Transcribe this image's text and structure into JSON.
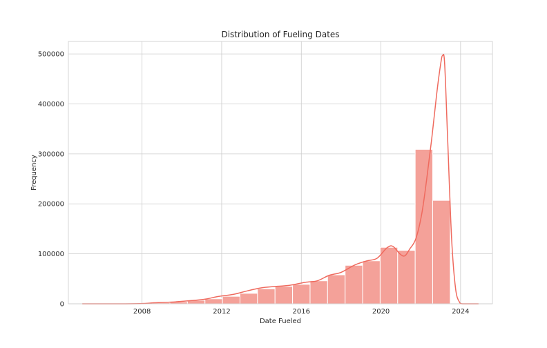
{
  "chart_data": {
    "type": "bar",
    "title": "Distribution of Fueling Dates",
    "xlabel": "Date Fueled",
    "ylabel": "Frequency",
    "xlim": [
      2004.3,
      2025.6
    ],
    "ylim": [
      0,
      525000
    ],
    "x_ticks": [
      2008,
      2012,
      2016,
      2020,
      2024
    ],
    "y_ticks": [
      0,
      100000,
      200000,
      300000,
      400000,
      500000
    ],
    "grid": true,
    "bar_color": "#f4a199",
    "line_color": "#ef6a5e",
    "bins": [
      {
        "start": 2005.0,
        "end": 2005.88,
        "value": 0
      },
      {
        "start": 2005.88,
        "end": 2006.76,
        "value": 0
      },
      {
        "start": 2006.76,
        "end": 2007.64,
        "value": 0
      },
      {
        "start": 2007.64,
        "end": 2008.52,
        "value": 500
      },
      {
        "start": 2008.52,
        "end": 2009.4,
        "value": 2000
      },
      {
        "start": 2009.4,
        "end": 2010.28,
        "value": 4000
      },
      {
        "start": 2010.28,
        "end": 2011.16,
        "value": 7000
      },
      {
        "start": 2011.16,
        "end": 2012.04,
        "value": 10000
      },
      {
        "start": 2012.04,
        "end": 2012.92,
        "value": 15000
      },
      {
        "start": 2012.92,
        "end": 2013.8,
        "value": 21000
      },
      {
        "start": 2013.8,
        "end": 2014.68,
        "value": 30000
      },
      {
        "start": 2014.68,
        "end": 2015.56,
        "value": 35000
      },
      {
        "start": 2015.56,
        "end": 2016.44,
        "value": 39000
      },
      {
        "start": 2016.44,
        "end": 2017.32,
        "value": 46000
      },
      {
        "start": 2017.32,
        "end": 2018.2,
        "value": 58000
      },
      {
        "start": 2018.2,
        "end": 2019.08,
        "value": 77000
      },
      {
        "start": 2019.08,
        "end": 2019.96,
        "value": 86000
      },
      {
        "start": 2019.96,
        "end": 2020.84,
        "value": 113000
      },
      {
        "start": 2020.84,
        "end": 2021.72,
        "value": 107000
      },
      {
        "start": 2021.72,
        "end": 2022.6,
        "value": 309000
      },
      {
        "start": 2022.6,
        "end": 2023.48,
        "value": 207000
      }
    ],
    "kde": [
      [
        2005.0,
        0
      ],
      [
        2007.0,
        0
      ],
      [
        2008.0,
        500
      ],
      [
        2008.6,
        2000
      ],
      [
        2009.5,
        3500
      ],
      [
        2010.5,
        6500
      ],
      [
        2011.2,
        9500
      ],
      [
        2011.8,
        14500
      ],
      [
        2012.6,
        19000
      ],
      [
        2013.3,
        26000
      ],
      [
        2014.0,
        32000
      ],
      [
        2014.8,
        35000
      ],
      [
        2015.4,
        37000
      ],
      [
        2016.2,
        43000
      ],
      [
        2016.8,
        46000
      ],
      [
        2017.4,
        57000
      ],
      [
        2018.0,
        63000
      ],
      [
        2018.7,
        78000
      ],
      [
        2019.3,
        86000
      ],
      [
        2019.8,
        91000
      ],
      [
        2020.3,
        112000
      ],
      [
        2020.6,
        115000
      ],
      [
        2020.95,
        100000
      ],
      [
        2021.2,
        96000
      ],
      [
        2021.45,
        110000
      ],
      [
        2021.75,
        130000
      ],
      [
        2022.05,
        180000
      ],
      [
        2022.3,
        250000
      ],
      [
        2022.55,
        330000
      ],
      [
        2022.8,
        420000
      ],
      [
        2023.0,
        480000
      ],
      [
        2023.1,
        497000
      ],
      [
        2023.2,
        480000
      ],
      [
        2023.35,
        330000
      ],
      [
        2023.55,
        130000
      ],
      [
        2023.75,
        30000
      ],
      [
        2023.95,
        3000
      ],
      [
        2024.1,
        0
      ],
      [
        2024.9,
        0
      ]
    ]
  }
}
